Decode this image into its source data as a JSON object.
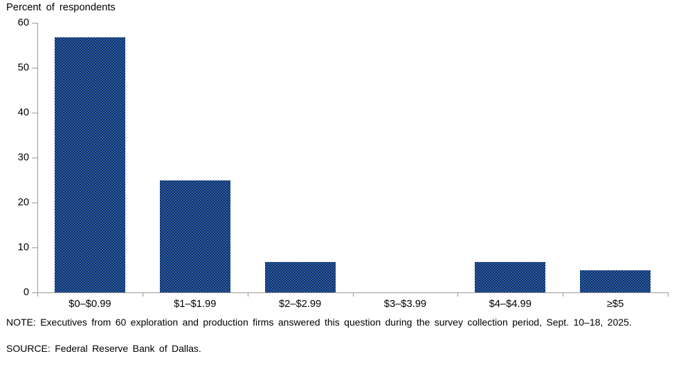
{
  "title": "Percent of respondents",
  "colors": {
    "bar": "#1F4787",
    "bar_texture_light": "#2B5CB0",
    "bar_texture_dark": "#123159",
    "axis": "#999999",
    "text": "#000000"
  },
  "chart_data": {
    "type": "bar",
    "categories": [
      "$0–$0.99",
      "$1–$1.99",
      "$2–$2.99",
      "$3–$3.99",
      "$4–$4.99",
      "≥$5"
    ],
    "values": [
      56.7,
      25,
      6.7,
      0,
      6.7,
      5
    ],
    "title": "Percent of respondents",
    "xlabel": "",
    "ylabel": "Percent of respondents",
    "ylim": [
      0,
      60
    ],
    "yticks": [
      0,
      10,
      20,
      30,
      40,
      50,
      60
    ],
    "grid": false,
    "legend": null
  },
  "note": "NOTE: Executives from 60 exploration and production firms answered this question during the survey collection period, Sept. 10–18, 2025.",
  "source": "SOURCE: Federal Reserve Bank of Dallas."
}
